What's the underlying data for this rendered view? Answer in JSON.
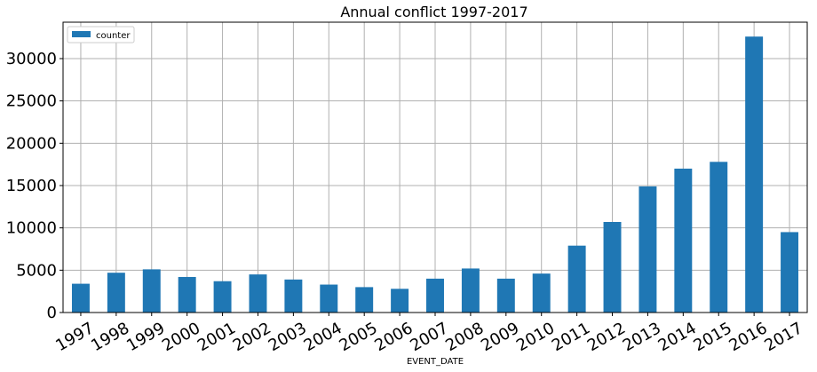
{
  "chart_data": {
    "type": "bar",
    "title": "Annual conflict 1997-2017",
    "xlabel": "EVENT_DATE",
    "ylabel": "",
    "categories": [
      "1997",
      "1998",
      "1999",
      "2000",
      "2001",
      "2002",
      "2003",
      "2004",
      "2005",
      "2006",
      "2007",
      "2008",
      "2009",
      "2010",
      "2011",
      "2012",
      "2013",
      "2014",
      "2015",
      "2016",
      "2017"
    ],
    "series": [
      {
        "name": "counter",
        "color": "#1f77b4",
        "values": [
          3400,
          4700,
          5100,
          4200,
          3700,
          4500,
          3900,
          3300,
          3000,
          2800,
          4000,
          5200,
          4000,
          4600,
          7900,
          10700,
          14900,
          17000,
          17800,
          32600,
          9500
        ]
      }
    ],
    "ylim": [
      0,
      34300
    ],
    "yticks": [
      0,
      5000,
      10000,
      15000,
      20000,
      25000,
      30000
    ],
    "grid": true,
    "legend_position": "top-left"
  }
}
